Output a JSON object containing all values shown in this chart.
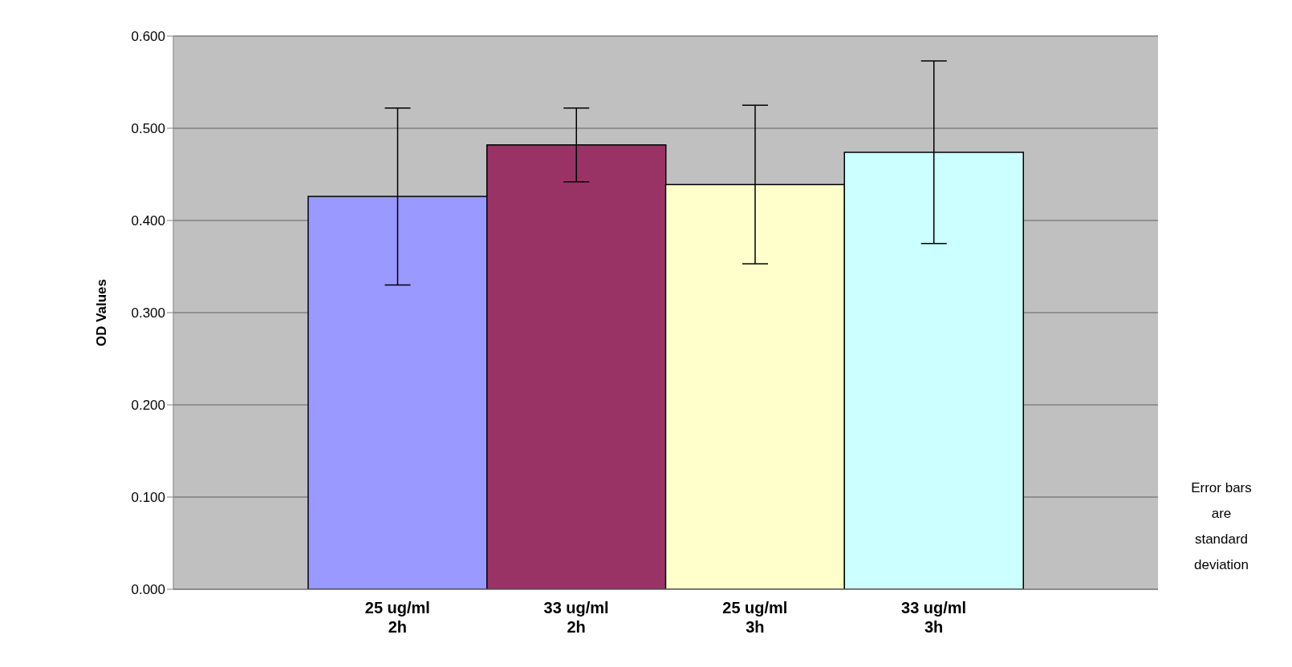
{
  "chart_data": {
    "type": "bar",
    "ylabel": "OD Values",
    "categories": [
      "25 ug/ml 2h",
      "33 ug/ml 2h",
      "25 ug/ml 3h",
      "33 ug/ml 3h"
    ],
    "values": [
      0.426,
      0.482,
      0.439,
      0.474
    ],
    "errors": [
      0.096,
      0.04,
      0.086,
      0.099
    ],
    "colors": [
      "#9999ff",
      "#993366",
      "#ffffcc",
      "#ccffff"
    ],
    "ylim": [
      0,
      0.6
    ],
    "yticks": [
      {
        "value": 0,
        "label": "0.000"
      },
      {
        "value": 0.1,
        "label": "0.100"
      },
      {
        "value": 0.2,
        "label": "0.200"
      },
      {
        "value": 0.3,
        "label": "0.300"
      },
      {
        "value": 0.4,
        "label": "0.400"
      },
      {
        "value": 0.5,
        "label": "0.500"
      },
      {
        "value": 0.6,
        "label": "0.600"
      }
    ],
    "grid": "y",
    "annotations": [
      "Error bars are standard deviation"
    ]
  }
}
